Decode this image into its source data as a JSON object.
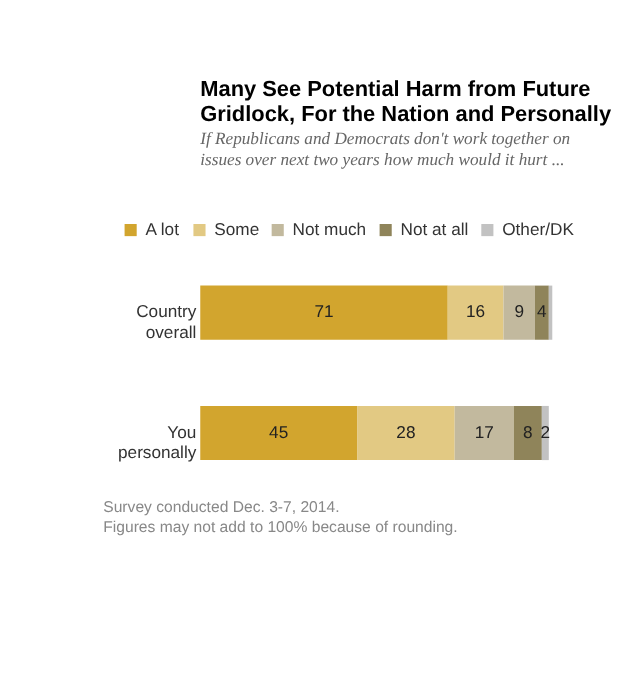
{
  "chart_data": {
    "type": "bar",
    "orientation": "horizontal",
    "stacked": true,
    "tick_labels": false,
    "title": "Many See Potential Harm from Future Gridlock, For the Nation and Personally",
    "subtitle": "If Republicans and Democrats don't work together on issues over next two years how much would it hurt ...",
    "categories": [
      "Country overall",
      "You personally"
    ],
    "series": [
      {
        "name": "A lot",
        "color": "#d2a52e",
        "values": [
          71,
          45
        ],
        "value_labels": [
          "71",
          "45"
        ]
      },
      {
        "name": "Some",
        "color": "#e2c983",
        "values": [
          16,
          28
        ],
        "value_labels": [
          "16",
          "28"
        ]
      },
      {
        "name": "Not much",
        "color": "#c2b99e",
        "values": [
          9,
          17
        ],
        "value_labels": [
          "9",
          "17"
        ]
      },
      {
        "name": "Not at all",
        "color": "#8f845a",
        "values": [
          4,
          8
        ],
        "value_labels": [
          "4",
          "8"
        ]
      },
      {
        "name": "Other/DK",
        "color": "#c2c2c2",
        "values": [
          1,
          2
        ],
        "value_labels": [
          null,
          "2"
        ]
      }
    ],
    "legend": "top",
    "annotations": [
      "Survey conducted Dec. 3-7, 2014.",
      "Figures may not add to 100% because of rounding."
    ]
  }
}
